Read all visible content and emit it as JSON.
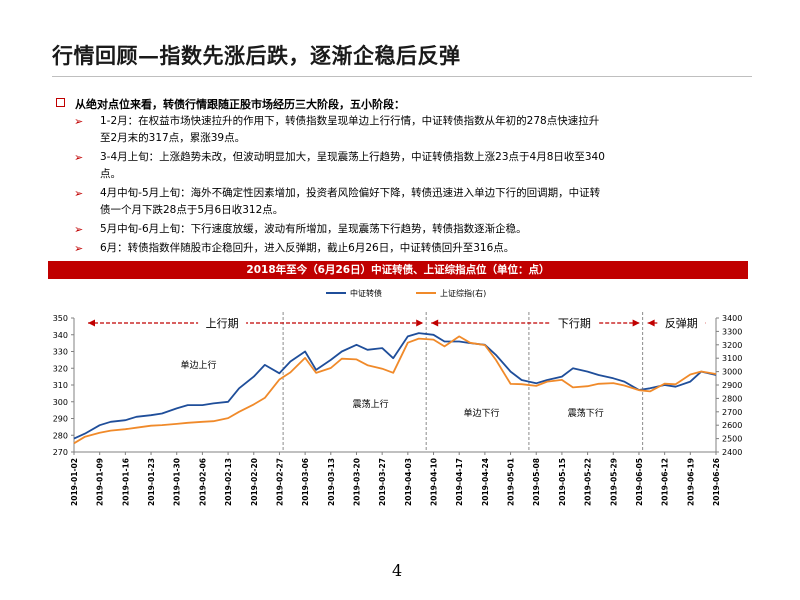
{
  "title": "行情回顾—指数先涨后跌，逐渐企稳后反弹",
  "lead": "从绝对点位来看，转债行情跟随正股市场经历三大阶段，五小阶段：",
  "bullets": [
    {
      "line1": "1-2月：在权益市场快速拉升的作用下，转债指数呈现单边上行行情，中证转债指数从年初的278点快速拉升",
      "line2": "至2月末的317点，累涨39点。"
    },
    {
      "line1": "3-4月上旬：上涨趋势未改，但波动明显加大，呈现震荡上行趋势，中证转债指数上涨23点于4月8日收至340",
      "line2": "点。"
    },
    {
      "line1": "4月中旬-5月上旬：海外不确定性因素增加，投资者风险偏好下降，转债迅速进入单边下行的回调期，中证转",
      "line2": "债一个月下跌28点于5月6日收312点。"
    },
    {
      "line1": "5月中旬-6月上旬：下行速度放缓，波动有所增加，呈现震荡下行趋势，转债指数逐渐企稳。",
      "line2": ""
    },
    {
      "line1": "6月：转债指数伴随股市企稳回升，进入反弹期，截止6月26日，中证转债回升至316点。",
      "line2": ""
    }
  ],
  "chart_banner": "2018年至今（6月26日）中证转债、上证综指点位（单位：点）",
  "page_number": "4",
  "colors": {
    "accent": "#c00000",
    "series1": "#1f4e9a",
    "series2": "#f08a2a"
  },
  "chart_data": {
    "type": "line",
    "legend_position": "top-center",
    "grid": false,
    "ylim": [
      270,
      350
    ],
    "y2lim": [
      2400,
      3400
    ],
    "yticks": [
      270,
      280,
      290,
      300,
      310,
      320,
      330,
      340,
      350
    ],
    "y2ticks": [
      2400,
      2500,
      2600,
      2700,
      2800,
      2900,
      3000,
      3100,
      3200,
      3300,
      3400
    ],
    "xtick_labels": [
      "2019-01-02",
      "2019-01-09",
      "2019-01-16",
      "2019-01-23",
      "2019-01-30",
      "2019-02-06",
      "2019-02-13",
      "2019-02-20",
      "2019-02-27",
      "2019-03-06",
      "2019-03-13",
      "2019-03-20",
      "2019-03-27",
      "2019-04-03",
      "2019-04-10",
      "2019-04-17",
      "2019-04-24",
      "2019-05-01",
      "2019-05-08",
      "2019-05-15",
      "2019-05-22",
      "2019-05-29",
      "2019-06-05",
      "2019-06-12",
      "2019-06-19",
      "2019-06-26"
    ],
    "x": [
      "2019-01-02",
      "2019-01-05",
      "2019-01-09",
      "2019-01-12",
      "2019-01-16",
      "2019-01-19",
      "2019-01-23",
      "2019-01-26",
      "2019-01-30",
      "2019-02-02",
      "2019-02-06",
      "2019-02-09",
      "2019-02-13",
      "2019-02-16",
      "2019-02-20",
      "2019-02-23",
      "2019-02-27",
      "2019-03-02",
      "2019-03-06",
      "2019-03-09",
      "2019-03-13",
      "2019-03-16",
      "2019-03-20",
      "2019-03-23",
      "2019-03-27",
      "2019-03-30",
      "2019-04-03",
      "2019-04-06",
      "2019-04-10",
      "2019-04-13",
      "2019-04-17",
      "2019-04-20",
      "2019-04-24",
      "2019-04-27",
      "2019-05-01",
      "2019-05-04",
      "2019-05-08",
      "2019-05-11",
      "2019-05-15",
      "2019-05-18",
      "2019-05-22",
      "2019-05-25",
      "2019-05-29",
      "2019-06-01",
      "2019-06-05",
      "2019-06-08",
      "2019-06-12",
      "2019-06-15",
      "2019-06-19",
      "2019-06-22",
      "2019-06-26"
    ],
    "series": [
      {
        "name": "中证转债",
        "axis": "left",
        "color": "#1f4e9a",
        "values": [
          278,
          281,
          286,
          288,
          289,
          291,
          292,
          293,
          296,
          298,
          298,
          299,
          300,
          308,
          315,
          322,
          317,
          324,
          330,
          319,
          325,
          330,
          334,
          331,
          332,
          326,
          339,
          341,
          340,
          336,
          336,
          335,
          334,
          328,
          318,
          313,
          311,
          313,
          315,
          320,
          318,
          316,
          314,
          312,
          307,
          308,
          310,
          309,
          312,
          318,
          316
        ]
      },
      {
        "name": "上证综指(右)",
        "axis": "right",
        "color": "#f08a2a",
        "values": [
          2465,
          2514,
          2544,
          2560,
          2570,
          2581,
          2596,
          2601,
          2610,
          2618,
          2625,
          2630,
          2653,
          2700,
          2755,
          2804,
          2941,
          2994,
          3102,
          2990,
          3027,
          3096,
          3091,
          3048,
          3022,
          2991,
          3216,
          3246,
          3239,
          3188,
          3263,
          3215,
          3198,
          3087,
          2908,
          2906,
          2893,
          2925,
          2938,
          2882,
          2891,
          2909,
          2914,
          2896,
          2861,
          2852,
          2910,
          2905,
          2978,
          3001,
          2982
        ]
      }
    ],
    "phase_labels": [
      "上行期",
      "下行期",
      "反弹期"
    ],
    "subphase_labels": [
      "单边上行",
      "震荡上行",
      "单边下行",
      "震荡下行"
    ],
    "phase_divider_dates": [
      "2019-02-28",
      "2019-04-08",
      "2019-05-06",
      "2019-06-06"
    ]
  }
}
